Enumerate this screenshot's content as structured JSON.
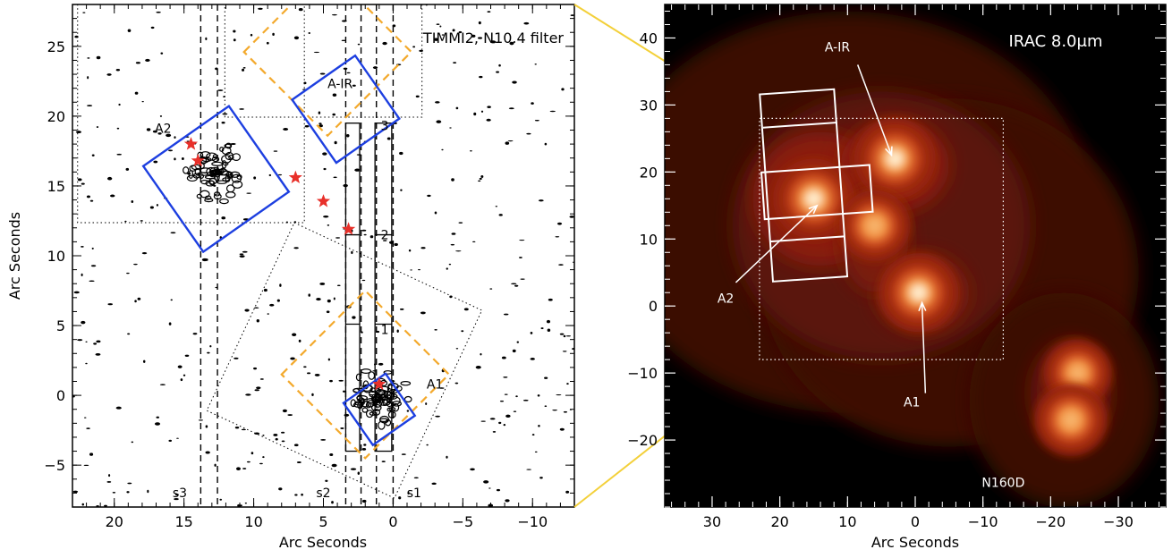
{
  "chart_data": [
    {
      "type": "scatter",
      "title": "TIMMI2, N10.4 filter",
      "xlabel": "Arc Seconds",
      "ylabel": "Arc Seconds",
      "xlim": [
        23,
        -13
      ],
      "ylim": [
        -8,
        28
      ],
      "xticks": [
        20,
        15,
        10,
        5,
        0,
        -5,
        -10
      ],
      "yticks": [
        -5,
        0,
        5,
        10,
        15,
        20,
        25
      ],
      "annotations": [
        {
          "text": "A2",
          "x": 16.5,
          "y": 18.8
        },
        {
          "text": "A-IR",
          "x": 3.8,
          "y": 22.0
        },
        {
          "text": "A1",
          "x": -3.0,
          "y": 0.5
        },
        {
          "text": "s3",
          "x": 15.3,
          "y": -7.3
        },
        {
          "text": "s2",
          "x": 5.0,
          "y": -7.3
        },
        {
          "text": "s1",
          "x": -1.5,
          "y": -7.3
        },
        {
          "text": "1",
          "x": 0.6,
          "y": 4.4
        },
        {
          "text": "2",
          "x": 0.6,
          "y": 11.2
        },
        {
          "text": "3",
          "x": 0.6,
          "y": 19.0
        }
      ],
      "stars": [
        {
          "x": 14.5,
          "y": 18.0
        },
        {
          "x": 14.0,
          "y": 16.8
        },
        {
          "x": 7.0,
          "y": 15.6
        },
        {
          "x": 5.0,
          "y": 13.9
        },
        {
          "x": 3.2,
          "y": 11.9
        },
        {
          "x": 1.0,
          "y": 0.8
        }
      ],
      "slits": [
        {
          "name": "s3",
          "x": [
            13.8,
            12.6
          ]
        },
        {
          "name": "s2",
          "x": [
            3.4,
            2.3
          ]
        },
        {
          "name": "s1",
          "x": [
            1.2,
            0.0
          ]
        }
      ],
      "blue_boxes": [
        {
          "center": [
            12.7,
            15.5
          ],
          "half_diag": 5.3
        },
        {
          "center": [
            3.4,
            20.5
          ],
          "half_diag": 3.9
        },
        {
          "center": [
            1.0,
            -1.0
          ],
          "half_diag": 2.6
        }
      ],
      "orange_boxes": [
        {
          "center": [
            4.7,
            24.6
          ],
          "half_diag": 6.0
        },
        {
          "center": [
            2.0,
            1.5
          ],
          "half_diag": 6.0
        }
      ],
      "colors": {
        "blue": "#1d3fe0",
        "orange": "#f3a92c",
        "star": "#e8302a",
        "connector": "#f3d03a"
      }
    },
    {
      "type": "heatmap",
      "title": "IRAC 8.0μm",
      "xlabel": "Arc Seconds",
      "ylabel": "",
      "xlim": [
        37,
        -37
      ],
      "ylim": [
        -30,
        45
      ],
      "xticks": [
        30,
        20,
        10,
        0,
        -10,
        -20,
        -30
      ],
      "yticks": [
        -20,
        -10,
        0,
        10,
        20,
        30,
        40
      ],
      "labels": [
        {
          "text": "A-IR",
          "x": 11.5,
          "y": 38.0
        },
        {
          "text": "A2",
          "x": 28.0,
          "y": 0.5
        },
        {
          "text": "A1",
          "x": 0.5,
          "y": -15.0
        },
        {
          "text": "N160D",
          "x": -13.0,
          "y": -27.0
        }
      ],
      "sources": [
        {
          "x": 3.0,
          "y": 22.0,
          "peak": 1.0
        },
        {
          "x": 15.0,
          "y": 16.0,
          "peak": 1.0
        },
        {
          "x": -0.5,
          "y": 2.0,
          "peak": 0.95
        },
        {
          "x": 6.0,
          "y": 12.0,
          "peak": 0.7
        },
        {
          "x": -24.0,
          "y": -10.0,
          "peak": 0.6
        },
        {
          "x": -23.0,
          "y": -17.0,
          "peak": 0.75
        }
      ],
      "colors": {
        "white": "#ffffff",
        "background": "#000000"
      }
    }
  ]
}
